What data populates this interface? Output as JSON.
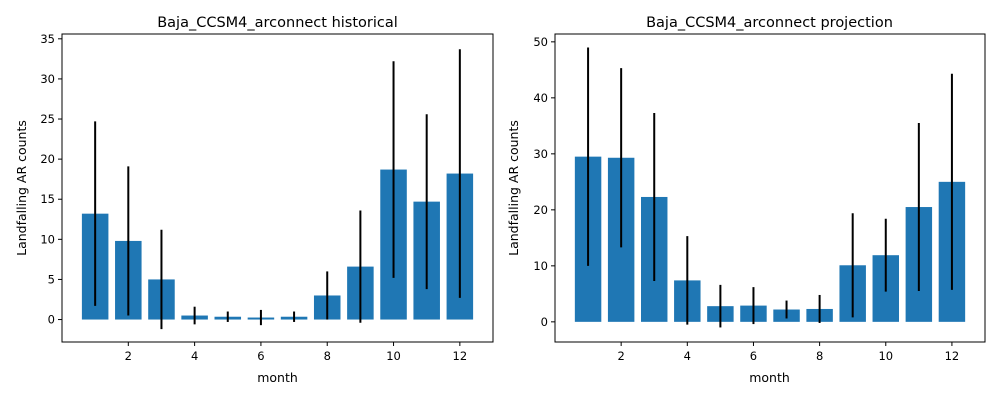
{
  "chart_data": [
    {
      "type": "bar",
      "title": "Baja_CCSM4_arconnect historical",
      "xlabel": "month",
      "ylabel": "Landfalling AR counts",
      "x": [
        1,
        2,
        3,
        4,
        5,
        6,
        7,
        8,
        9,
        10,
        11,
        12
      ],
      "values": [
        13.2,
        9.8,
        5.0,
        0.5,
        0.35,
        0.25,
        0.35,
        3.0,
        6.6,
        18.7,
        14.7,
        18.2
      ],
      "error": [
        11.5,
        9.3,
        6.2,
        1.1,
        0.65,
        0.95,
        0.65,
        3.0,
        7.0,
        13.5,
        10.9,
        15.5
      ],
      "xlim": [
        0.0,
        13.0
      ],
      "ylim": [
        -2.8,
        35.6
      ],
      "xticks": [
        2,
        4,
        6,
        8,
        10,
        12
      ],
      "yticks": [
        0,
        5,
        10,
        15,
        20,
        25,
        30,
        35
      ],
      "bar_color": "#1f77b4",
      "error_color": "#000000"
    },
    {
      "type": "bar",
      "title": "Baja_CCSM4_arconnect projection",
      "xlabel": "month",
      "ylabel": "Landfalling AR counts",
      "x": [
        1,
        2,
        3,
        4,
        5,
        6,
        7,
        8,
        9,
        10,
        11,
        12
      ],
      "values": [
        29.5,
        29.3,
        22.3,
        7.4,
        2.8,
        2.9,
        2.2,
        2.3,
        10.1,
        11.9,
        20.5,
        25.0
      ],
      "error": [
        19.5,
        16.0,
        15.0,
        7.9,
        3.8,
        3.3,
        1.6,
        2.5,
        9.3,
        6.5,
        15.0,
        19.3
      ],
      "xlim": [
        0.0,
        13.0
      ],
      "ylim": [
        -3.6,
        51.4
      ],
      "xticks": [
        2,
        4,
        6,
        8,
        10,
        12
      ],
      "yticks": [
        0,
        10,
        20,
        30,
        40,
        50
      ],
      "bar_color": "#1f77b4",
      "error_color": "#000000"
    }
  ]
}
